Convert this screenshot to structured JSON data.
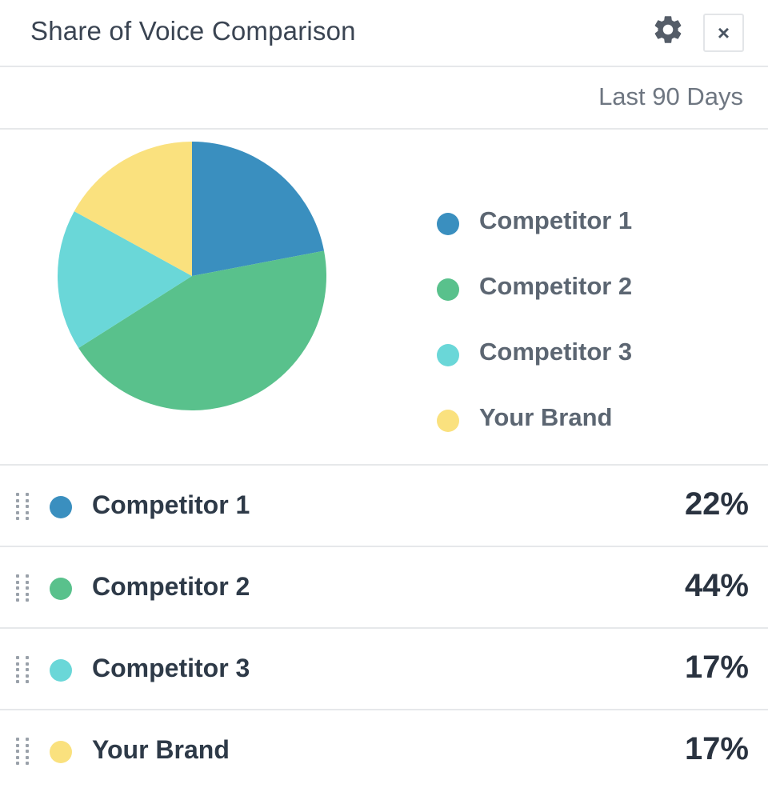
{
  "header": {
    "title": "Share of Voice Comparison",
    "settings_icon": "gear-icon",
    "close_label": "×"
  },
  "range": {
    "label": "Last 90 Days"
  },
  "chart_data": {
    "type": "pie",
    "title": "",
    "categories": [
      "Competitor 1",
      "Competitor 2",
      "Competitor 3",
      "Your Brand"
    ],
    "values": [
      22,
      44,
      17,
      17
    ],
    "unit": "%",
    "colors": [
      "#3a8fbf",
      "#59c18c",
      "#6ad7d8",
      "#fae17e"
    ],
    "legend": "right"
  },
  "list": {
    "rows": [
      {
        "label": "Competitor 1",
        "value": "22%",
        "color": "#3a8fbf"
      },
      {
        "label": "Competitor 2",
        "value": "44%",
        "color": "#59c18c"
      },
      {
        "label": "Competitor 3",
        "value": "17%",
        "color": "#6ad7d8"
      },
      {
        "label": "Your Brand",
        "value": "17%",
        "color": "#fae17e"
      }
    ]
  }
}
